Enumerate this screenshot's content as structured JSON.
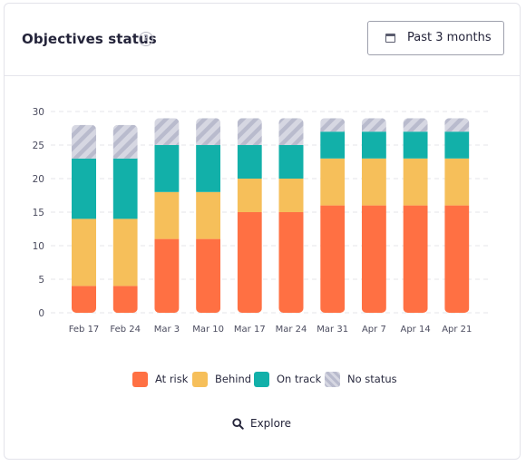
{
  "header": {
    "title": "Objectives status",
    "help_icon": "question-circle-icon",
    "range_icon": "calendar-icon",
    "range_label": "Past 3 months"
  },
  "colors": {
    "at_risk": "#ff7043",
    "behind": "#f6bf5a",
    "on_track": "#12b0a9",
    "no_status": "#c7c9d8"
  },
  "chart_data": {
    "type": "bar",
    "stacked": true,
    "categories": [
      "Feb 17",
      "Feb 24",
      "Mar 3",
      "Mar 10",
      "Mar 17",
      "Mar 24",
      "Mar 31",
      "Apr 7",
      "Apr 14",
      "Apr 21"
    ],
    "series": [
      {
        "name": "At risk",
        "values": [
          4,
          4,
          11,
          11,
          15,
          15,
          16,
          16,
          16,
          16
        ]
      },
      {
        "name": "Behind",
        "values": [
          10,
          10,
          7,
          7,
          5,
          5,
          7,
          7,
          7,
          7
        ]
      },
      {
        "name": "On track",
        "values": [
          9,
          9,
          7,
          7,
          5,
          5,
          4,
          4,
          4,
          4
        ]
      },
      {
        "name": "No status",
        "values": [
          5,
          5,
          4,
          4,
          4,
          4,
          2,
          2,
          2,
          2
        ]
      }
    ],
    "ylim": [
      0,
      30
    ],
    "yticks": [
      0,
      5,
      10,
      15,
      20,
      25,
      30
    ],
    "ytick_labels": [
      "0",
      "5",
      "10",
      "15",
      "20",
      "25",
      "30"
    ],
    "grid": true
  },
  "legend": {
    "items": [
      {
        "label": "At risk",
        "key": "at_risk"
      },
      {
        "label": "Behind",
        "key": "behind"
      },
      {
        "label": "On track",
        "key": "on_track"
      },
      {
        "label": "No status",
        "key": "no_status"
      }
    ]
  },
  "explore": {
    "icon": "search-icon",
    "label": "Explore"
  }
}
